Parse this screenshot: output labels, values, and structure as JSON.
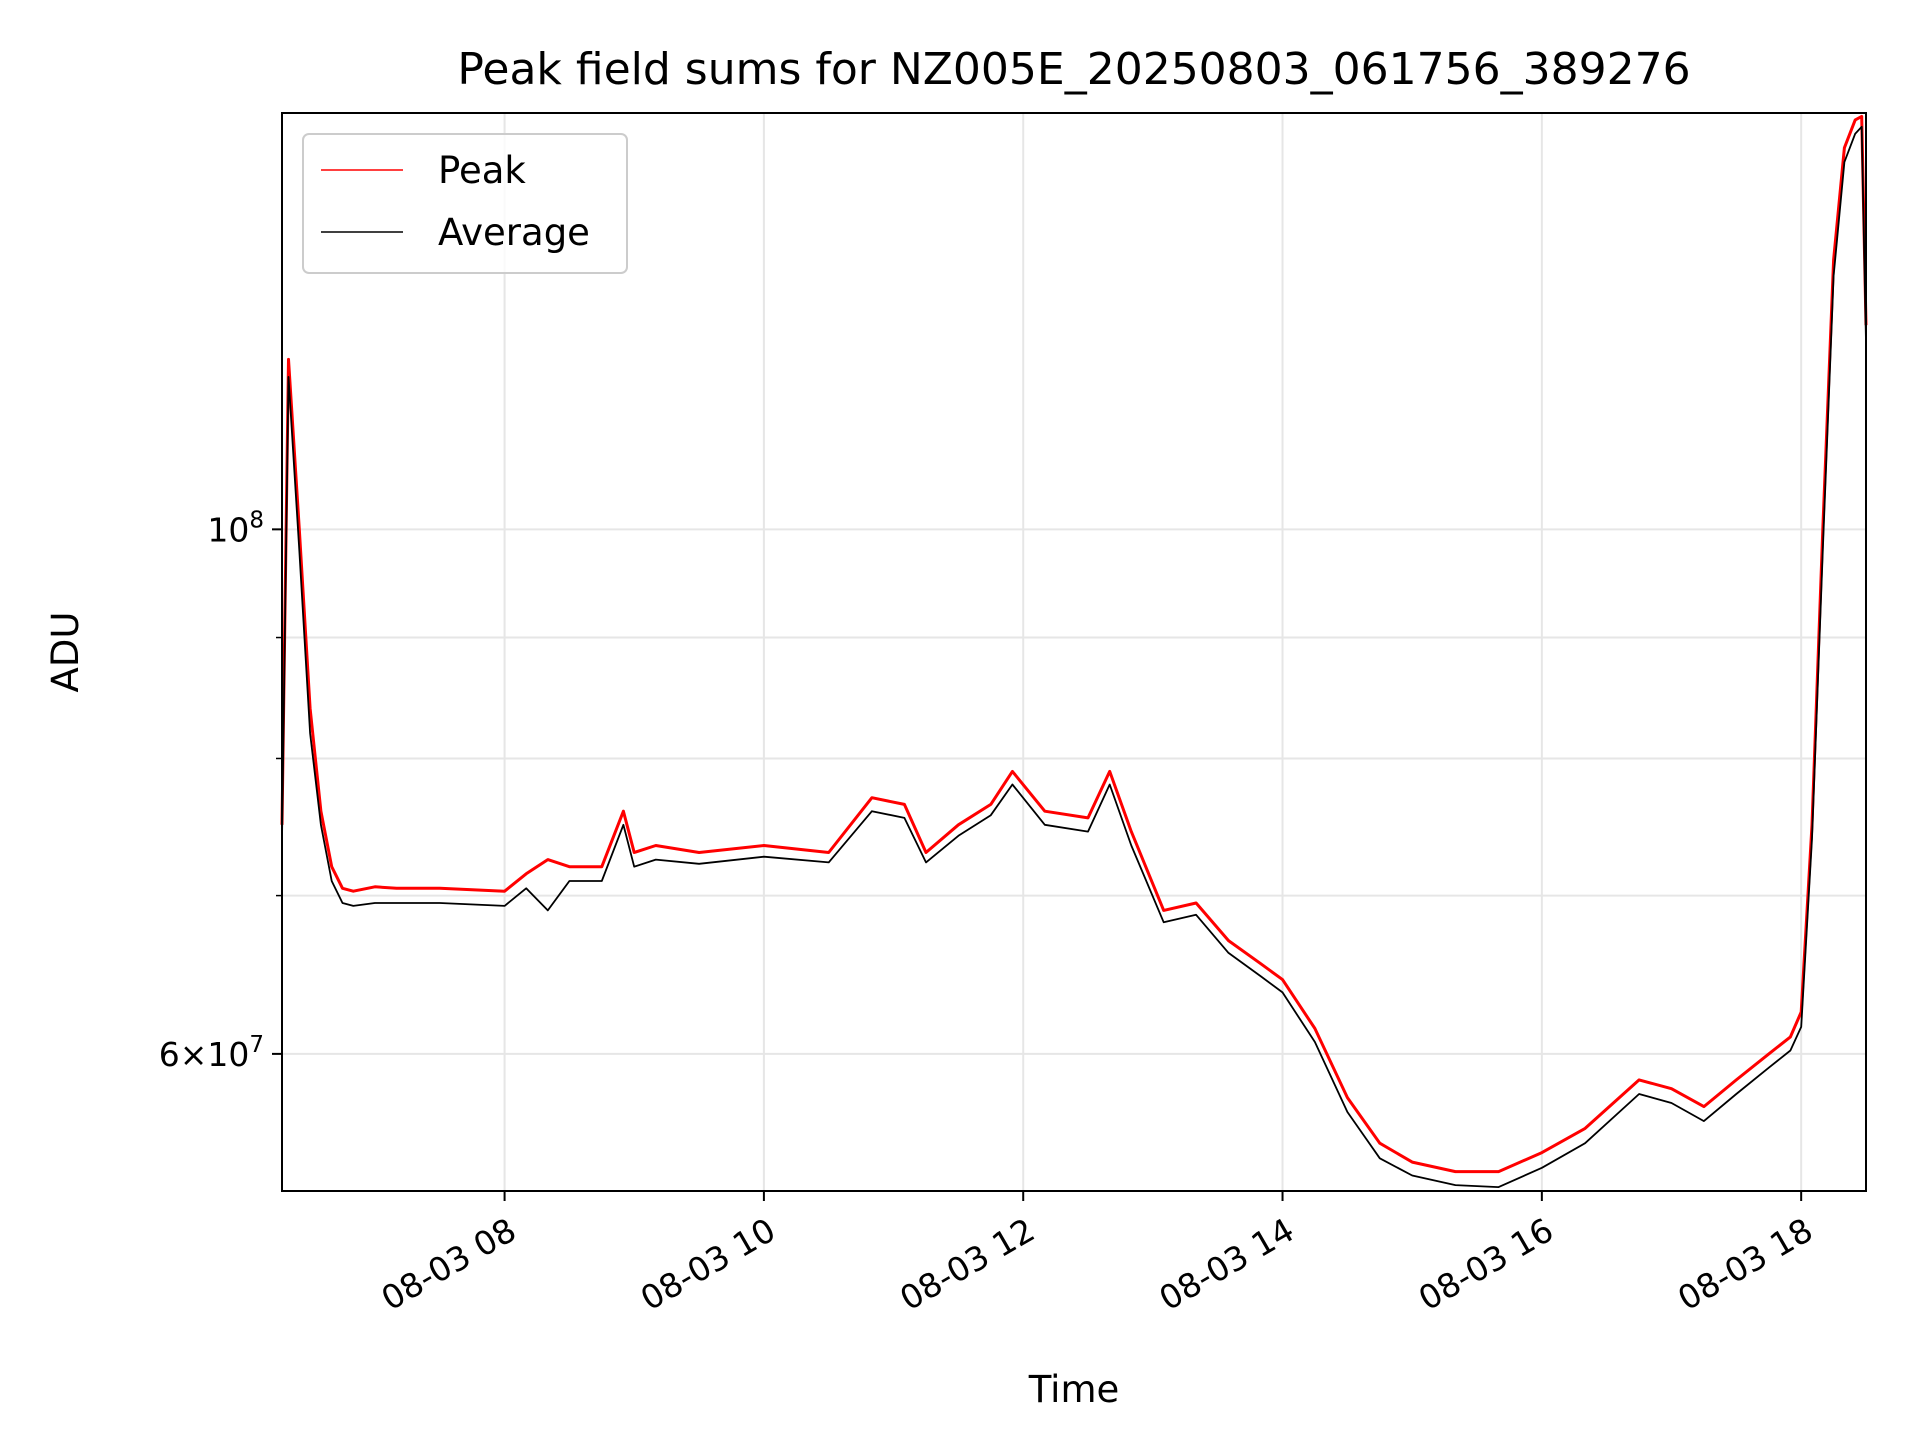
{
  "chart_data": {
    "type": "line",
    "title": "Peak field sums for NZ005E_20250803_061756_389276",
    "xlabel": "Time",
    "ylabel": "ADU",
    "y_scale": "log",
    "ylim": [
      52500000,
      150000000
    ],
    "xlim": [
      "2025-08-03 06:17",
      "2025-08-03 18:30"
    ],
    "grid": true,
    "legend_position": "upper-left",
    "x_ticks": [
      {
        "value": "2025-08-03 08:00",
        "label": "08-03 08"
      },
      {
        "value": "2025-08-03 10:00",
        "label": "08-03 10"
      },
      {
        "value": "2025-08-03 12:00",
        "label": "08-03 12"
      },
      {
        "value": "2025-08-03 14:00",
        "label": "08-03 14"
      },
      {
        "value": "2025-08-03 16:00",
        "label": "08-03 16"
      },
      {
        "value": "2025-08-03 18:00",
        "label": "08-03 18"
      }
    ],
    "y_ticks_major": [
      {
        "value": 100000000,
        "base": "10",
        "exp": "8"
      },
      {
        "value": 60000000,
        "mant": "6",
        "base": "10",
        "exp": "7"
      }
    ],
    "y_ticks_minor": [
      70000000,
      80000000,
      90000000
    ],
    "series": [
      {
        "name": "Peak",
        "color": "#ff0000",
        "x": [
          "2025-08-03 06:17",
          "2025-08-03 06:20",
          "2025-08-03 06:25",
          "2025-08-03 06:30",
          "2025-08-03 06:35",
          "2025-08-03 06:40",
          "2025-08-03 06:45",
          "2025-08-03 06:50",
          "2025-08-03 07:00",
          "2025-08-03 07:10",
          "2025-08-03 07:30",
          "2025-08-03 08:00",
          "2025-08-03 08:10",
          "2025-08-03 08:20",
          "2025-08-03 08:30",
          "2025-08-03 08:45",
          "2025-08-03 08:55",
          "2025-08-03 09:00",
          "2025-08-03 09:10",
          "2025-08-03 09:30",
          "2025-08-03 10:00",
          "2025-08-03 10:30",
          "2025-08-03 10:50",
          "2025-08-03 11:05",
          "2025-08-03 11:15",
          "2025-08-03 11:30",
          "2025-08-03 11:45",
          "2025-08-03 11:55",
          "2025-08-03 12:10",
          "2025-08-03 12:30",
          "2025-08-03 12:40",
          "2025-08-03 12:50",
          "2025-08-03 13:05",
          "2025-08-03 13:20",
          "2025-08-03 13:35",
          "2025-08-03 13:50",
          "2025-08-03 14:00",
          "2025-08-03 14:15",
          "2025-08-03 14:30",
          "2025-08-03 14:45",
          "2025-08-03 15:00",
          "2025-08-03 15:20",
          "2025-08-03 15:40",
          "2025-08-03 16:00",
          "2025-08-03 16:20",
          "2025-08-03 16:45",
          "2025-08-03 17:00",
          "2025-08-03 17:15",
          "2025-08-03 17:30",
          "2025-08-03 17:45",
          "2025-08-03 17:55",
          "2025-08-03 18:00",
          "2025-08-03 18:05",
          "2025-08-03 18:10",
          "2025-08-03 18:15",
          "2025-08-03 18:20",
          "2025-08-03 18:25",
          "2025-08-03 18:28",
          "2025-08-03 18:30"
        ],
        "values": [
          75000000,
          118000000,
          100000000,
          84000000,
          76000000,
          72000000,
          70500000,
          70300000,
          70600000,
          70500000,
          70500000,
          70300000,
          71500000,
          72500000,
          72000000,
          72000000,
          76000000,
          73000000,
          73500000,
          73000000,
          73500000,
          73000000,
          77000000,
          76500000,
          73000000,
          75000000,
          76500000,
          79000000,
          76000000,
          75500000,
          79000000,
          74500000,
          69000000,
          69500000,
          67000000,
          65500000,
          64500000,
          61500000,
          57500000,
          55000000,
          54000000,
          53500000,
          53500000,
          54500000,
          55800000,
          58500000,
          58000000,
          57000000,
          58500000,
          60000000,
          61000000,
          62500000,
          75000000,
          100000000,
          130000000,
          145000000,
          149000000,
          149500000,
          122000000
        ]
      },
      {
        "name": "Average",
        "color": "#000000",
        "x": [
          "2025-08-03 06:17",
          "2025-08-03 06:20",
          "2025-08-03 06:25",
          "2025-08-03 06:30",
          "2025-08-03 06:35",
          "2025-08-03 06:40",
          "2025-08-03 06:45",
          "2025-08-03 06:50",
          "2025-08-03 07:00",
          "2025-08-03 07:10",
          "2025-08-03 07:30",
          "2025-08-03 08:00",
          "2025-08-03 08:10",
          "2025-08-03 08:20",
          "2025-08-03 08:30",
          "2025-08-03 08:45",
          "2025-08-03 08:55",
          "2025-08-03 09:00",
          "2025-08-03 09:10",
          "2025-08-03 09:30",
          "2025-08-03 10:00",
          "2025-08-03 10:30",
          "2025-08-03 10:50",
          "2025-08-03 11:05",
          "2025-08-03 11:15",
          "2025-08-03 11:30",
          "2025-08-03 11:45",
          "2025-08-03 11:55",
          "2025-08-03 12:10",
          "2025-08-03 12:30",
          "2025-08-03 12:40",
          "2025-08-03 12:50",
          "2025-08-03 13:05",
          "2025-08-03 13:20",
          "2025-08-03 13:35",
          "2025-08-03 13:50",
          "2025-08-03 14:00",
          "2025-08-03 14:15",
          "2025-08-03 14:30",
          "2025-08-03 14:45",
          "2025-08-03 15:00",
          "2025-08-03 15:20",
          "2025-08-03 15:40",
          "2025-08-03 16:00",
          "2025-08-03 16:20",
          "2025-08-03 16:45",
          "2025-08-03 17:00",
          "2025-08-03 17:15",
          "2025-08-03 17:30",
          "2025-08-03 17:45",
          "2025-08-03 17:55",
          "2025-08-03 18:00",
          "2025-08-03 18:05",
          "2025-08-03 18:10",
          "2025-08-03 18:15",
          "2025-08-03 18:20",
          "2025-08-03 18:25",
          "2025-08-03 18:28",
          "2025-08-03 18:30"
        ],
        "values": [
          74000000,
          116000000,
          98000000,
          82000000,
          75000000,
          71000000,
          69500000,
          69300000,
          69500000,
          69500000,
          69500000,
          69300000,
          70500000,
          69000000,
          71000000,
          71000000,
          75000000,
          72000000,
          72500000,
          72200000,
          72700000,
          72300000,
          76000000,
          75500000,
          72300000,
          74200000,
          75700000,
          78000000,
          75000000,
          74500000,
          78000000,
          73500000,
          68200000,
          68700000,
          66200000,
          64700000,
          63700000,
          60700000,
          56700000,
          54200000,
          53300000,
          52800000,
          52700000,
          53700000,
          55000000,
          57700000,
          57200000,
          56200000,
          57700000,
          59200000,
          60200000,
          61600000,
          74000000,
          98000000,
          128000000,
          143000000,
          147000000,
          148000000,
          120000000
        ]
      }
    ]
  }
}
